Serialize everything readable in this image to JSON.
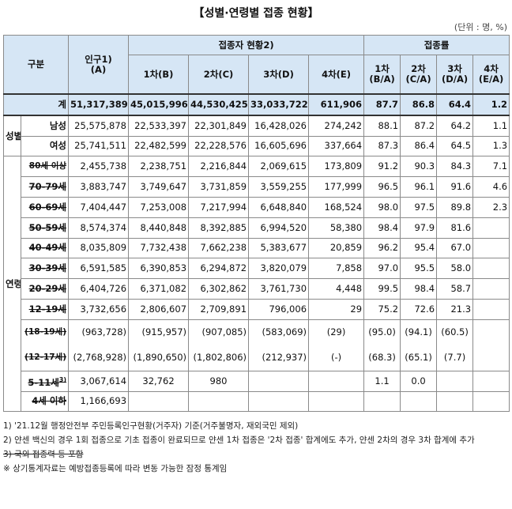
{
  "title": "【성별·연령별 접종 현황】",
  "unit": "(단위 : 명, %)",
  "headers": {
    "category": "구분",
    "population": "인구1)",
    "population_sub": "(A)",
    "vaccinated_group": "접종자 현황2)",
    "rate_group": "접종률",
    "dose1": "1차(B)",
    "dose2": "2차(C)",
    "dose3": "3차(D)",
    "dose4": "4차(E)",
    "rate1": "1차",
    "rate1_sub": "(B/A)",
    "rate2": "2차",
    "rate2_sub": "(C/A)",
    "rate3": "3차",
    "rate3_sub": "(D/A)",
    "rate4": "4차",
    "rate4_sub": "(E/A)"
  },
  "groups": {
    "sex": "성별",
    "age": "연령"
  },
  "total": {
    "label": "계",
    "pop": "51,317,389",
    "d1": "45,015,996",
    "d2": "44,530,425",
    "d3": "33,033,722",
    "d4": "611,906",
    "r1": "87.7",
    "r2": "86.8",
    "r3": "64.4",
    "r4": "1.2"
  },
  "rows": {
    "male": {
      "label": "남성",
      "pop": "25,575,878",
      "d1": "22,533,397",
      "d2": "22,301,849",
      "d3": "16,428,026",
      "d4": "274,242",
      "r1": "88.1",
      "r2": "87.2",
      "r3": "64.2",
      "r4": "1.1"
    },
    "female": {
      "label": "여성",
      "pop": "25,741,511",
      "d1": "22,482,599",
      "d2": "22,228,576",
      "d3": "16,605,696",
      "d4": "337,664",
      "r1": "87.3",
      "r2": "86.4",
      "r3": "64.5",
      "r4": "1.3"
    },
    "a80": {
      "label": "80세 이상",
      "pop": "2,455,738",
      "d1": "2,238,751",
      "d2": "2,216,844",
      "d3": "2,069,615",
      "d4": "173,809",
      "r1": "91.2",
      "r2": "90.3",
      "r3": "84.3",
      "r4": "7.1"
    },
    "a70": {
      "label": "70-79세",
      "pop": "3,883,747",
      "d1": "3,749,647",
      "d2": "3,731,859",
      "d3": "3,559,255",
      "d4": "177,999",
      "r1": "96.5",
      "r2": "96.1",
      "r3": "91.6",
      "r4": "4.6"
    },
    "a60": {
      "label": "60-69세",
      "pop": "7,404,447",
      "d1": "7,253,008",
      "d2": "7,217,994",
      "d3": "6,648,840",
      "d4": "168,524",
      "r1": "98.0",
      "r2": "97.5",
      "r3": "89.8",
      "r4": "2.3"
    },
    "a50": {
      "label": "50-59세",
      "pop": "8,574,374",
      "d1": "8,440,848",
      "d2": "8,392,885",
      "d3": "6,994,520",
      "d4": "58,380",
      "r1": "98.4",
      "r2": "97.9",
      "r3": "81.6",
      "r4": ""
    },
    "a40": {
      "label": "40-49세",
      "pop": "8,035,809",
      "d1": "7,732,438",
      "d2": "7,662,238",
      "d3": "5,383,677",
      "d4": "20,859",
      "r1": "96.2",
      "r2": "95.4",
      "r3": "67.0",
      "r4": ""
    },
    "a30": {
      "label": "30-39세",
      "pop": "6,591,585",
      "d1": "6,390,853",
      "d2": "6,294,872",
      "d3": "3,820,079",
      "d4": "7,858",
      "r1": "97.0",
      "r2": "95.5",
      "r3": "58.0",
      "r4": ""
    },
    "a20": {
      "label": "20-29세",
      "pop": "6,404,726",
      "d1": "6,371,082",
      "d2": "6,302,862",
      "d3": "3,761,730",
      "d4": "4,448",
      "r1": "99.5",
      "r2": "98.4",
      "r3": "58.7",
      "r4": ""
    },
    "a12": {
      "label": "12-19세",
      "pop": "3,732,656",
      "d1": "2,806,607",
      "d2": "2,709,891",
      "d3": "796,006",
      "d4": "29",
      "r1": "75.2",
      "r2": "72.6",
      "r3": "21.3",
      "r4": ""
    },
    "a18": {
      "label": "(18-19세)",
      "pop": "(963,728)",
      "d1": "(915,957)",
      "d2": "(907,085)",
      "d3": "(583,069)",
      "d4": "(29)",
      "r1": "(95.0)",
      "r2": "(94.1)",
      "r3": "(60.5)",
      "r4": ""
    },
    "a1217": {
      "label": "(12-17세)",
      "pop": "(2,768,928)",
      "d1": "(1,890,650)",
      "d2": "(1,802,806)",
      "d3": "(212,937)",
      "d4": "(-)",
      "r1": "(68.3)",
      "r2": "(65.1)",
      "r3": "(7.7)",
      "r4": ""
    },
    "a5": {
      "label": "5-11세",
      "label_sup": "3)",
      "pop": "3,067,614",
      "d1": "32,762",
      "d2": "980",
      "d3": "",
      "d4": "",
      "r1": "1.1",
      "r2": "0.0",
      "r3": "",
      "r4": ""
    },
    "a4": {
      "label": "4세 이하",
      "pop": "1,166,693",
      "d1": "",
      "d2": "",
      "d3": "",
      "d4": "",
      "r1": "",
      "r2": "",
      "r3": "",
      "r4": ""
    }
  },
  "notes": {
    "n1": "1) '21.12월 행정안전부 주민등록인구현황(거주자) 기준(거주불명자, 재외국민 제외)",
    "n2": "2) 얀센 백신의 경우 1회 접종으로 기초 접종이 완료되므로 얀센 1차 접종은 '2차 접종' 합계에도 추가, 얀센 2차의 경우 3차 합계에 추가",
    "n3": "3) 국외 접종력 등 포함",
    "n4": "※ 상기통계자료는 예방접종등록에 따라 변동 가능한 잠정 통계임"
  }
}
